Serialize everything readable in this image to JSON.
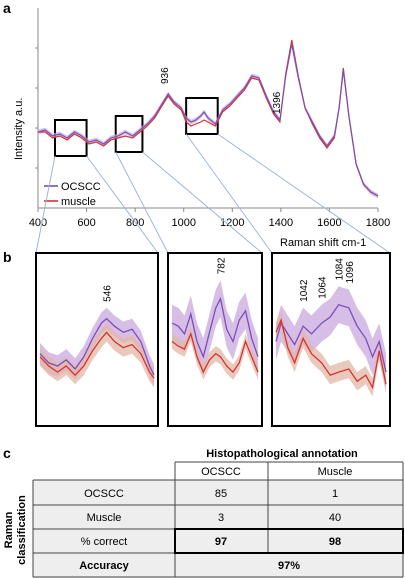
{
  "panels": {
    "a": "a",
    "b": "b",
    "c": "c"
  },
  "colors": {
    "ocscc": "#7b4fb8",
    "ocscc_band": "#c9a8dd",
    "muscle": "#d63232",
    "muscle_band": "#e3b7a7",
    "zoom_line": "#9fb6d8"
  },
  "chart_data": [
    {
      "type": "line",
      "panel": "a",
      "xlabel": "Raman shift cm-1",
      "ylabel": "Intensity a.u.",
      "xlim": [
        400,
        1800
      ],
      "xticks": [
        400,
        600,
        800,
        1000,
        1200,
        1400,
        1600,
        1800
      ],
      "ylim": [
        0,
        1
      ],
      "legend": {
        "position": "bottom-left",
        "entries": [
          "OCSCC",
          "muscle"
        ]
      },
      "peak_labels": [
        {
          "text": "936",
          "x": 936,
          "y": 0.6
        },
        {
          "text": "1396",
          "x": 1396,
          "y": 0.45
        }
      ],
      "zoom_boxes": [
        {
          "x0": 470,
          "x1": 600,
          "y0": 0.26,
          "y1": 0.44
        },
        {
          "x0": 720,
          "x1": 830,
          "y0": 0.28,
          "y1": 0.46
        },
        {
          "x0": 1010,
          "x1": 1140,
          "y0": 0.37,
          "y1": 0.55
        }
      ],
      "series": [
        {
          "name": "OCSCC",
          "x": [
            400,
            430,
            460,
            490,
            520,
            550,
            580,
            610,
            640,
            670,
            700,
            730,
            760,
            790,
            820,
            850,
            880,
            910,
            936,
            960,
            990,
            1010,
            1030,
            1050,
            1070,
            1084,
            1100,
            1130,
            1160,
            1190,
            1220,
            1250,
            1280,
            1310,
            1340,
            1370,
            1396,
            1420,
            1445,
            1470,
            1500,
            1530,
            1560,
            1590,
            1620,
            1640,
            1657,
            1680,
            1710,
            1740,
            1770,
            1800
          ],
          "values": [
            0.38,
            0.39,
            0.36,
            0.37,
            0.35,
            0.38,
            0.36,
            0.33,
            0.34,
            0.32,
            0.35,
            0.36,
            0.38,
            0.36,
            0.39,
            0.42,
            0.46,
            0.52,
            0.57,
            0.53,
            0.5,
            0.45,
            0.43,
            0.44,
            0.46,
            0.48,
            0.45,
            0.42,
            0.49,
            0.52,
            0.56,
            0.6,
            0.66,
            0.65,
            0.56,
            0.48,
            0.44,
            0.66,
            0.82,
            0.66,
            0.5,
            0.43,
            0.36,
            0.31,
            0.36,
            0.5,
            0.69,
            0.46,
            0.22,
            0.12,
            0.08,
            0.06
          ]
        },
        {
          "name": "muscle",
          "x": [
            400,
            430,
            460,
            490,
            520,
            550,
            580,
            610,
            640,
            670,
            700,
            730,
            760,
            790,
            820,
            850,
            880,
            910,
            936,
            960,
            990,
            1010,
            1030,
            1050,
            1070,
            1084,
            1100,
            1130,
            1160,
            1190,
            1220,
            1250,
            1280,
            1310,
            1340,
            1370,
            1396,
            1420,
            1445,
            1470,
            1500,
            1530,
            1560,
            1590,
            1620,
            1640,
            1657,
            1680,
            1710,
            1740,
            1770,
            1800
          ],
          "values": [
            0.38,
            0.38,
            0.35,
            0.36,
            0.34,
            0.37,
            0.35,
            0.32,
            0.33,
            0.31,
            0.34,
            0.35,
            0.36,
            0.35,
            0.38,
            0.41,
            0.45,
            0.51,
            0.56,
            0.52,
            0.49,
            0.43,
            0.41,
            0.42,
            0.43,
            0.44,
            0.43,
            0.41,
            0.48,
            0.51,
            0.55,
            0.59,
            0.65,
            0.64,
            0.55,
            0.47,
            0.43,
            0.67,
            0.84,
            0.67,
            0.5,
            0.42,
            0.35,
            0.3,
            0.35,
            0.5,
            0.7,
            0.46,
            0.22,
            0.12,
            0.08,
            0.06
          ]
        }
      ]
    },
    {
      "type": "line",
      "panel": "b-left",
      "xlim": [
        470,
        600
      ],
      "peak_labels": [
        {
          "text": "546",
          "x": 546
        }
      ],
      "series": [
        {
          "name": "OCSCC",
          "x": [
            470,
            480,
            490,
            500,
            510,
            520,
            530,
            540,
            546,
            555,
            565,
            575,
            585,
            595,
            600
          ],
          "values": [
            0.42,
            0.36,
            0.34,
            0.38,
            0.32,
            0.4,
            0.52,
            0.62,
            0.65,
            0.6,
            0.56,
            0.58,
            0.5,
            0.34,
            0.28
          ],
          "band": 0.07
        },
        {
          "name": "muscle",
          "x": [
            470,
            480,
            490,
            500,
            510,
            520,
            530,
            540,
            546,
            555,
            565,
            575,
            585,
            595,
            600
          ],
          "values": [
            0.4,
            0.34,
            0.3,
            0.34,
            0.28,
            0.34,
            0.44,
            0.52,
            0.56,
            0.5,
            0.46,
            0.48,
            0.42,
            0.3,
            0.26
          ],
          "band": 0.06
        }
      ]
    },
    {
      "type": "line",
      "panel": "b-middle",
      "xlim": [
        720,
        830
      ],
      "peak_labels": [
        {
          "text": "782",
          "x": 782
        }
      ],
      "series": [
        {
          "name": "OCSCC",
          "x": [
            720,
            728,
            736,
            744,
            752,
            760,
            768,
            776,
            782,
            790,
            798,
            806,
            814,
            822,
            830
          ],
          "values": [
            0.62,
            0.6,
            0.55,
            0.68,
            0.5,
            0.4,
            0.56,
            0.72,
            0.78,
            0.58,
            0.5,
            0.64,
            0.7,
            0.52,
            0.4
          ],
          "band": 0.12
        },
        {
          "name": "muscle",
          "x": [
            720,
            728,
            736,
            744,
            752,
            760,
            768,
            776,
            782,
            790,
            798,
            806,
            814,
            822,
            830
          ],
          "values": [
            0.5,
            0.47,
            0.45,
            0.55,
            0.4,
            0.3,
            0.38,
            0.42,
            0.4,
            0.34,
            0.3,
            0.36,
            0.5,
            0.4,
            0.3
          ],
          "band": 0.05
        }
      ]
    },
    {
      "type": "line",
      "panel": "b-right",
      "xlim": [
        1010,
        1140
      ],
      "peak_labels": [
        {
          "text": "1042",
          "x": 1042
        },
        {
          "text": "1064",
          "x": 1064
        },
        {
          "text": "1084",
          "x": 1084
        },
        {
          "text": "1096",
          "x": 1096
        }
      ],
      "series": [
        {
          "name": "OCSCC",
          "x": [
            1010,
            1016,
            1024,
            1032,
            1042,
            1052,
            1064,
            1074,
            1084,
            1096,
            1106,
            1116,
            1124,
            1132,
            1140
          ],
          "values": [
            0.5,
            0.62,
            0.55,
            0.48,
            0.6,
            0.55,
            0.62,
            0.66,
            0.74,
            0.72,
            0.6,
            0.52,
            0.4,
            0.5,
            0.3
          ],
          "band": 0.12
        },
        {
          "name": "muscle",
          "x": [
            1010,
            1016,
            1024,
            1032,
            1042,
            1052,
            1064,
            1074,
            1084,
            1096,
            1106,
            1116,
            1124,
            1132,
            1140
          ],
          "values": [
            0.56,
            0.64,
            0.46,
            0.36,
            0.52,
            0.42,
            0.36,
            0.28,
            0.3,
            0.32,
            0.24,
            0.28,
            0.2,
            0.44,
            0.22
          ],
          "band": 0.06
        }
      ]
    }
  ],
  "table": {
    "title": "Histopathological annotation",
    "row_axis_label": [
      "Raman",
      "classification"
    ],
    "columns": [
      "OCSCC",
      "Muscle"
    ],
    "rows": [
      {
        "label": "OCSCC",
        "values": [
          "85",
          "1"
        ],
        "bold": false
      },
      {
        "label": "Muscle",
        "values": [
          "3",
          "40"
        ],
        "bold": false
      },
      {
        "label": "% correct",
        "values": [
          "97",
          "98"
        ],
        "bold": true
      }
    ],
    "accuracy_label": "Accuracy",
    "accuracy_value": "97%"
  }
}
